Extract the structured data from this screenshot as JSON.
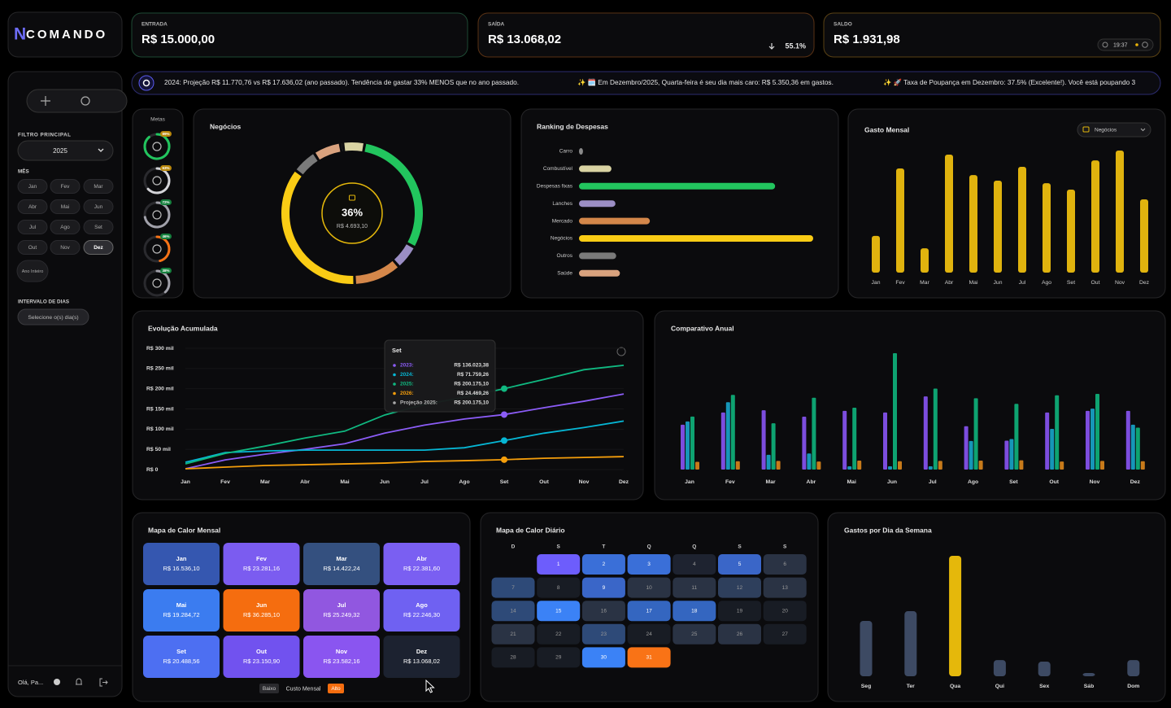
{
  "brand": {
    "logo": "N",
    "name": "COMANDO"
  },
  "kpis": [
    {
      "label": "ENTRADA",
      "value": "R$ 15.000,00"
    },
    {
      "label": "SAÍDA",
      "value": "R$ 13.068,02",
      "change": "55.1%"
    },
    {
      "label": "SALDO",
      "value": "R$ 1.931,98",
      "time": "19:37"
    }
  ],
  "ticker": [
    "2024: Projeção R$ 11.770,76 vs R$ 17.636,02 (ano passado). Tendência de gastar 33% MENOS que no ano passado.",
    "✨ 🗓️ Em Dezembro/2025, Quarta-feira é seu dia mais caro: R$ 5.350,36 em gastos.",
    "✨ 🚀 Taxa de Poupança em Dezembro: 37.5% (Excelente!). Você está poupando 3"
  ],
  "sidebar": {
    "filter_title": "FILTRO PRINCIPAL",
    "year": "2025",
    "month_title": "MÊS",
    "months": [
      "Jan",
      "Fev",
      "Mar",
      "Abr",
      "Mai",
      "Jun",
      "Jul",
      "Ago",
      "Set",
      "Out",
      "Nov",
      "Dez"
    ],
    "whole_year": "Ano Inteiro",
    "range_title": "INTERVALO DE DIAS",
    "range_placeholder": "Selecione o(s) dia(s)",
    "greeting": "Olá, Pa..."
  },
  "metas": {
    "title": "Metas",
    "values": [
      89,
      63,
      72,
      46,
      38
    ],
    "value_labels": [
      "89%",
      "63%",
      "72%",
      "46%",
      "38%"
    ],
    "colors": [
      "#22c55e",
      "#d4d4d8",
      "#a1a1aa",
      "#f97316",
      "#a1a1aa"
    ]
  },
  "negocios": {
    "title": "Negócios",
    "percent_label": "36%",
    "amount_label": "R$ 4.693,10"
  },
  "ranking": {
    "type": "bar",
    "title": "Ranking de Despesas",
    "categories": [
      "Carro",
      "Combustível",
      "Despesas fixas",
      "Lanches",
      "Mercado",
      "Negócios",
      "Outros",
      "Saúde"
    ],
    "values": [
      80,
      650,
      3930,
      730,
      1420,
      4693.1,
      745,
      820
    ],
    "colors": [
      "#8a8a8a",
      "#d9d3a3",
      "#22c55e",
      "#9b8ec4",
      "#d4874a",
      "#facc15",
      "#7a7a7a",
      "#d9a27e"
    ]
  },
  "gasto_mensal": {
    "type": "bar",
    "title": "Gasto Mensal",
    "filter": "Negócios",
    "categories": [
      "Jan",
      "Fev",
      "Mar",
      "Abr",
      "Mai",
      "Jun",
      "Jul",
      "Ago",
      "Set",
      "Out",
      "Nov",
      "Dez"
    ],
    "values": [
      2350,
      6670,
      1560,
      7560,
      6250,
      5890,
      6780,
      5730,
      5320,
      7190,
      7820,
      4693.1
    ],
    "color": "#e0b30e"
  },
  "evolucao": {
    "type": "line",
    "title": "Evolução Acumulada",
    "categories": [
      "Jan",
      "Fev",
      "Mar",
      "Abr",
      "Mai",
      "Jun",
      "Jul",
      "Ago",
      "Set",
      "Out",
      "Nov",
      "Dez"
    ],
    "ylim": [
      0,
      300000
    ],
    "yticks": [
      {
        "value": 0,
        "label": "R$ 0"
      },
      {
        "value": 50000,
        "label": "R$ 50 mil"
      },
      {
        "value": 100000,
        "label": "R$ 100 mil"
      },
      {
        "value": 150000,
        "label": "R$ 150 mil"
      },
      {
        "value": 200000,
        "label": "R$ 200 mil"
      },
      {
        "value": 250000,
        "label": "R$ 250 mil"
      },
      {
        "value": 300000,
        "label": "R$ 300 mil"
      }
    ],
    "series": [
      {
        "color": "#8b5cf6",
        "values": [
          2000,
          24000,
          38000,
          50000,
          64000,
          90000,
          110000,
          125000,
          136023.38,
          153000,
          169000,
          187000
        ]
      },
      {
        "color": "#06b6d4",
        "values": [
          18000,
          42000,
          46000,
          48000,
          48000,
          48000,
          48000,
          54000,
          71759.26,
          90000,
          104000,
          120000
        ]
      },
      {
        "color": "#10b981",
        "values": [
          14000,
          40000,
          58000,
          78000,
          95000,
          135000,
          161000,
          179000,
          200175.1,
          223000,
          247000,
          258000
        ]
      },
      {
        "color": "#f59e0b",
        "values": [
          2000,
          6000,
          10000,
          12000,
          14000,
          16000,
          20000,
          22000,
          24469.26,
          28000,
          30000,
          32000
        ]
      }
    ],
    "tooltip": {
      "title": "Set",
      "rows": [
        {
          "label": "2023:",
          "value": "R$ 136.023,38"
        },
        {
          "label": "2024:",
          "value": "R$ 71.759,26"
        },
        {
          "label": "2025:",
          "value": "R$ 200.175,10"
        },
        {
          "label": "2026:",
          "value": "R$ 24.469,26"
        },
        {
          "label": "Projeção 2025:",
          "value": "R$ 200.175,10"
        }
      ]
    }
  },
  "comparativo": {
    "type": "bar",
    "title": "Comparativo Anual",
    "categories": [
      "Jan",
      "Fev",
      "Mar",
      "Abr",
      "Mai",
      "Jun",
      "Jul",
      "Ago",
      "Set",
      "Out",
      "Nov",
      "Dez"
    ],
    "series": [
      {
        "color": "#7c4dde",
        "values": [
          14000,
          17800,
          18500,
          16500,
          18300,
          17800,
          22800,
          13500,
          9000,
          17800,
          18300,
          18300
        ]
      },
      {
        "color": "#1696b8",
        "values": [
          15000,
          21000,
          4600,
          5000,
          1000,
          1000,
          1000,
          8900,
          9500,
          12700,
          19000,
          14000
        ]
      },
      {
        "color": "#0ea371",
        "values": [
          16536.1,
          23281.16,
          14422.24,
          22381.6,
          19284.72,
          36285.1,
          25249.32,
          22246.3,
          20488.56,
          23150.9,
          23582.16,
          13068.02
        ]
      },
      {
        "color": "#c77a1a",
        "values": [
          2400,
          2600,
          2700,
          2500,
          2800,
          2600,
          2700,
          2800,
          2900,
          2500,
          2700,
          2600
        ]
      }
    ]
  },
  "heatmap_mensal": {
    "title": "Mapa de Calor Mensal",
    "categories": [
      "Jan",
      "Fev",
      "Mar",
      "Abr",
      "Mai",
      "Jun",
      "Jul",
      "Ago",
      "Set",
      "Out",
      "Nov",
      "Dez"
    ],
    "values": [
      16536.1,
      23281.16,
      14422.24,
      22381.6,
      19284.72,
      36285.1,
      25249.32,
      22246.3,
      20488.56,
      23150.9,
      23582.16,
      13068.02
    ],
    "value_labels": [
      "R$ 16.536,10",
      "R$ 23.281,16",
      "R$ 14.422,24",
      "R$ 22.381,60",
      "R$ 19.284,72",
      "R$ 36.285,10",
      "R$ 25.249,32",
      "R$ 22.246,30",
      "R$ 20.488,56",
      "R$ 23.150,90",
      "R$ 23.582,16",
      "R$ 13.068,02"
    ],
    "colors": [
      "#3557b0",
      "#7b5cf0",
      "#34507f",
      "#7a5ff2",
      "#3b7cf0",
      "#f56d0f",
      "#9157e0",
      "#6f61f2",
      "#4d6ff2",
      "#7152ef",
      "#8a55f0",
      "#1c2230"
    ],
    "legend": {
      "low": "Baixo",
      "title": "Custo Mensal",
      "high": "Alto"
    }
  },
  "heatmap_diario": {
    "title": "Mapa de Calor Diário",
    "weekdays": [
      "D",
      "S",
      "T",
      "Q",
      "Q",
      "S",
      "S"
    ],
    "days": [
      1,
      2,
      3,
      4,
      5,
      6,
      7,
      8,
      9,
      10,
      11,
      12,
      13,
      14,
      15,
      16,
      17,
      18,
      19,
      20,
      21,
      22,
      23,
      24,
      25,
      26,
      27,
      28,
      29,
      30,
      31
    ],
    "colors": [
      "#6d5dfc",
      "#3a6fd8",
      "#3a6fd8",
      "#1e2330",
      "#3a66c8",
      "#2a3344",
      "#2e4a78",
      "#181c24",
      "#3a66c8",
      "#2a3344",
      "#2a3344",
      "#2e3f5c",
      "#2a3344",
      "#2e4a78",
      "#3b82f6",
      "#2a3344",
      "#3466c0",
      "#3466c0",
      "#181c24",
      "#181c24",
      "#2a3344",
      "#181c24",
      "#2e4a78",
      "#181c24",
      "#2a3344",
      "#2a3344",
      "#181c24",
      "#181c24",
      "#181c24",
      "#3b82f6",
      "#f97316"
    ]
  },
  "semana": {
    "type": "bar",
    "title": "Gastos por Dia da Semana",
    "categories": [
      "Seg",
      "Ter",
      "Qua",
      "Qui",
      "Sex",
      "Sáb",
      "Dom"
    ],
    "values": [
      2460,
      2890,
      5350.36,
      720,
      650,
      145,
      720
    ],
    "colors": [
      "#3d4a63",
      "#3d4a63",
      "#e5b80b",
      "#3d4a63",
      "#3d4a63",
      "#3d4a63",
      "#3d4a63"
    ]
  }
}
